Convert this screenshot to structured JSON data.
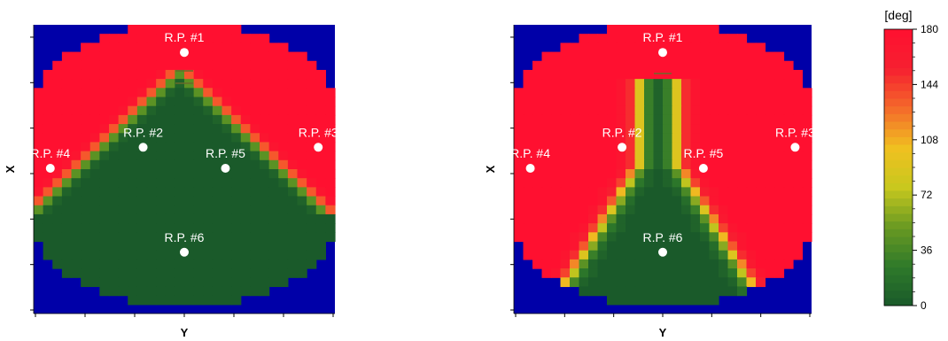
{
  "colorbar": {
    "unit": "[deg]",
    "min": 0,
    "max": 180,
    "ticks": [
      0,
      36,
      72,
      108,
      144,
      180
    ],
    "tick_labels": [
      "0",
      "36",
      "72",
      "108",
      "144",
      "180"
    ],
    "stops": [
      "#1a5a2a",
      "#2f7a2a",
      "#6a9a22",
      "#c8c81e",
      "#f0c020",
      "#f46a2a",
      "#f62030",
      "#ff1030"
    ]
  },
  "colors": {
    "outside": "#0000a8",
    "point": "#ffffff",
    "bar_mark": "#6a6a2a"
  },
  "chart_data": [
    {
      "type": "heatmap",
      "panel": "left",
      "xlabel": "Y",
      "ylabel": "X",
      "grid_size": 32,
      "domain_half_rows": [
        6,
        9,
        11,
        13,
        14,
        15,
        15,
        16,
        16,
        16,
        16,
        16,
        16,
        16,
        16,
        16,
        16,
        16,
        16,
        16,
        16,
        16,
        16,
        16,
        15,
        15,
        14,
        13,
        11,
        9,
        6,
        0
      ],
      "field": {
        "mode": "cone",
        "apex_row": 4.5,
        "slope": 1.0,
        "base_row": 21,
        "transition_width": 1.0
      },
      "points": [
        {
          "label": "R.P. #1",
          "y": 0.0,
          "x": -1.38
        },
        {
          "label": "R.P. #2",
          "y": -0.47,
          "x": -0.25
        },
        {
          "label": "R.P. #3",
          "y": 1.53,
          "x": -0.25
        },
        {
          "label": "R.P. #4",
          "y": -1.53,
          "x": 0.0
        },
        {
          "label": "R.P. #5",
          "y": 0.47,
          "x": 0.0
        },
        {
          "label": "R.P. #6",
          "y": 0.0,
          "x": 1.0
        }
      ]
    },
    {
      "type": "heatmap",
      "panel": "right",
      "xlabel": "Y",
      "ylabel": "X",
      "grid_size": 32,
      "domain_half_rows": [
        6,
        9,
        11,
        13,
        14,
        15,
        15,
        16,
        16,
        16,
        16,
        16,
        16,
        16,
        16,
        16,
        16,
        16,
        16,
        16,
        16,
        16,
        16,
        16,
        15,
        15,
        14,
        13,
        11,
        9,
        6,
        0
      ],
      "field": {
        "mode": "channel",
        "top_row": 6,
        "stem_half_width": 2.0,
        "fan_start_row": 15,
        "fan_slope": 0.6,
        "transition_width": 1.3
      },
      "points": [
        {
          "label": "R.P. #1",
          "y": 0.0,
          "x": -1.38
        },
        {
          "label": "R.P. #2",
          "y": -0.47,
          "x": -0.25
        },
        {
          "label": "R.P. #3",
          "y": 1.53,
          "x": -0.25
        },
        {
          "label": "R.P. #4",
          "y": -1.53,
          "x": 0.0
        },
        {
          "label": "R.P. #5",
          "y": 0.47,
          "x": 0.0
        },
        {
          "label": "R.P. #6",
          "y": 0.0,
          "x": 1.0
        }
      ]
    }
  ]
}
